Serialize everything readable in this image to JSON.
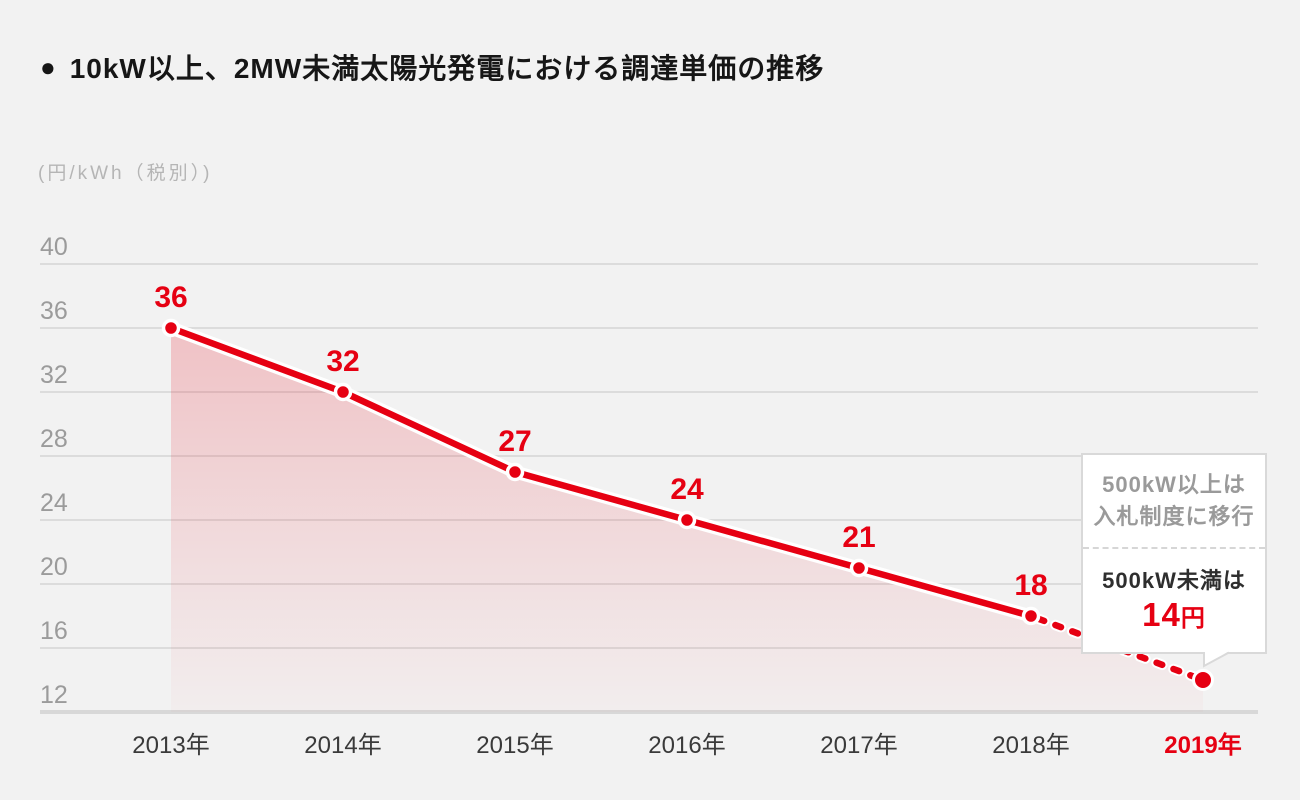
{
  "header": {
    "bullet": "●",
    "title": "10kW以上、2MW未満太陽光発電における調達単価の推移"
  },
  "chart_data": {
    "type": "line",
    "title": "10kW以上、2MW未満太陽光発電における調達単価の推移",
    "unit_label": "(円/kWh（税別）)",
    "categories": [
      "2013年",
      "2014年",
      "2015年",
      "2016年",
      "2017年",
      "2018年",
      "2019年"
    ],
    "values": [
      36,
      32,
      27,
      24,
      21,
      18,
      14
    ],
    "point_labels": [
      "36",
      "32",
      "27",
      "24",
      "21",
      "18",
      ""
    ],
    "solid_until_index": 5,
    "dashed_from_index": 5,
    "yticks": [
      40,
      36,
      32,
      28,
      24,
      20,
      16,
      12
    ],
    "ylim": [
      12,
      40
    ],
    "grid": true,
    "legend": "none",
    "area": true,
    "highlight_last_category": true
  },
  "callout": {
    "top_line1": "500kW以上は",
    "top_line2": "入札制度に移行",
    "bottom_line": "500kW未満は",
    "value": "14",
    "value_unit": "円"
  },
  "colors": {
    "accent": "#e60012",
    "background": "#f2f2f2",
    "grid": "#dcdcdc",
    "grid_base": "#d8d8d8",
    "tick_text": "#9b9b9b",
    "axis_text": "#3a3a3a",
    "muted_text": "#9a9a9a",
    "casing": "#ffffff"
  }
}
